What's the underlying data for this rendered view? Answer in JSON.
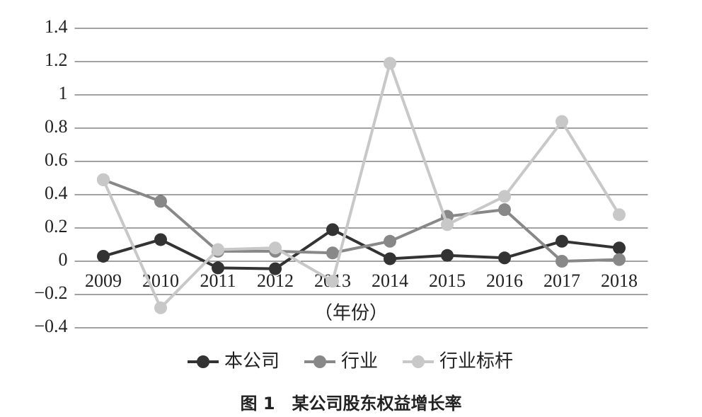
{
  "chart_data": {
    "type": "line",
    "title": "图 1　某公司股东权益增长率",
    "x_label": "（年份）",
    "categories": [
      "2009",
      "2010",
      "2011",
      "2012",
      "2013",
      "2014",
      "2015",
      "2016",
      "2017",
      "2018"
    ],
    "series": [
      {
        "name": "本公司",
        "color": "#333333",
        "values": [
          0.03,
          0.13,
          -0.04,
          -0.045,
          0.19,
          0.015,
          0.035,
          0.02,
          0.12,
          0.08
        ]
      },
      {
        "name": "行业",
        "color": "#888888",
        "values": [
          0.49,
          0.36,
          0.06,
          0.06,
          0.05,
          0.12,
          0.27,
          0.31,
          0.0,
          0.01
        ]
      },
      {
        "name": "行业标杆",
        "color": "#c8c8c8",
        "values": [
          0.49,
          -0.28,
          0.07,
          0.08,
          -0.12,
          1.19,
          0.22,
          0.39,
          0.84,
          0.28
        ]
      }
    ],
    "ylim": [
      -0.4,
      1.4
    ],
    "yticks": [
      {
        "value": -0.4,
        "label": "−0.4"
      },
      {
        "value": -0.2,
        "label": "−0.2"
      },
      0,
      0.2,
      0.4,
      0.6,
      0.8,
      1,
      1.2,
      1.4
    ],
    "grid": true,
    "legend": "bottom"
  }
}
